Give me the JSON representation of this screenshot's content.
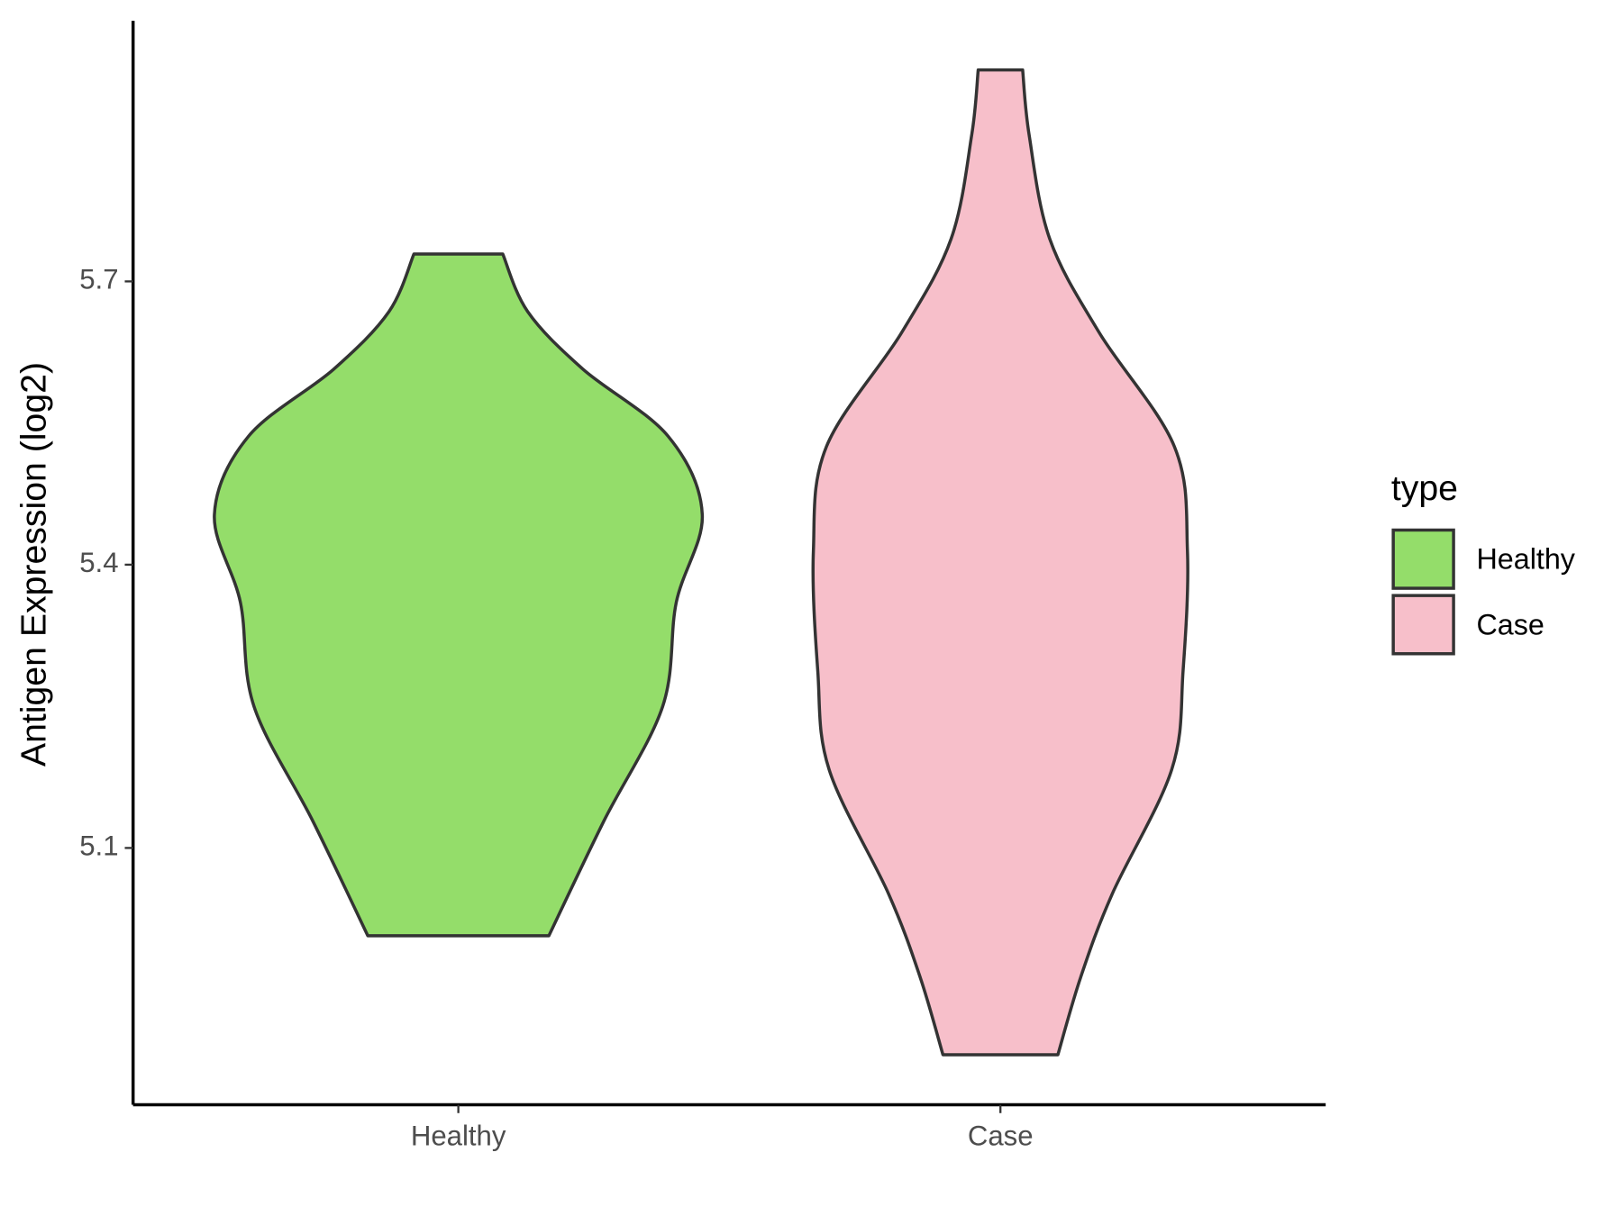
{
  "chart_data": {
    "type": "violin",
    "y_label": "Antigen Expression (log2)",
    "categories": [
      "Healthy",
      "Case"
    ],
    "ylim": [
      4.828,
      5.976
    ],
    "yticks": [
      5.1,
      5.4,
      5.7
    ],
    "legend_title": "type",
    "legend_position": "right",
    "series": [
      {
        "name": "Healthy",
        "color": "#94dd6a",
        "y": [
          5.729,
          5.668,
          5.607,
          5.536,
          5.453,
          5.36,
          5.25,
          5.128,
          5.007
        ],
        "half_width": [
          0.082,
          0.128,
          0.23,
          0.387,
          0.45,
          0.402,
          0.377,
          0.268,
          0.167
        ]
      },
      {
        "name": "Case",
        "color": "#f7bfca",
        "y": [
          5.924,
          5.855,
          5.745,
          5.646,
          5.525,
          5.415,
          5.288,
          5.183,
          5.051,
          4.963,
          4.881
        ],
        "half_width": [
          0.041,
          0.053,
          0.091,
          0.182,
          0.321,
          0.345,
          0.337,
          0.316,
          0.206,
          0.148,
          0.106
        ]
      }
    ]
  }
}
